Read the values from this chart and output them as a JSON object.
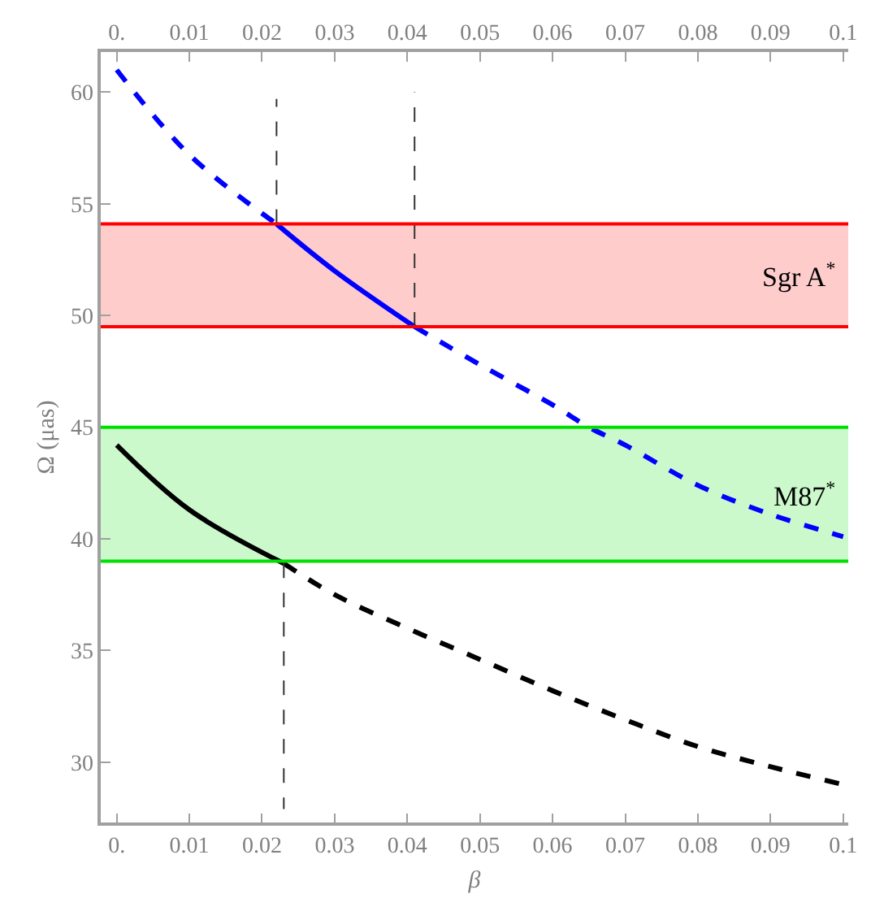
{
  "chart_data": {
    "type": "line",
    "xlabel": "β",
    "ylabel": "Ω (μas)",
    "xlim": [
      -0.0022,
      0.1007
    ],
    "ylim": [
      27.3,
      61.8
    ],
    "xticks": [
      {
        "value": 0,
        "label": "0."
      },
      0.01,
      0.02,
      0.03,
      0.04,
      0.05,
      0.06,
      0.07,
      0.08,
      0.09,
      0.1
    ],
    "x2lim": [
      -0.0022,
      0.1007
    ],
    "x2ticks": [
      {
        "value": 0,
        "label": "0."
      },
      0.01,
      0.02,
      0.03,
      0.04,
      0.05,
      0.06,
      0.07,
      0.08,
      0.09,
      0.1
    ],
    "yticks": [
      30,
      35,
      40,
      45,
      50,
      55,
      60
    ],
    "grid": false,
    "marker": "none",
    "ref_lines": [
      {
        "axis": "y",
        "value": 49.5,
        "color": "#ff0000"
      },
      {
        "axis": "y",
        "value": 54.1,
        "color": "#ff0000"
      },
      {
        "axis": "y",
        "value": 39.0,
        "color": "#00e000"
      },
      {
        "axis": "y",
        "value": 45.0,
        "color": "#00e000"
      }
    ],
    "bands": [
      {
        "axis": "y",
        "from": 49.5,
        "to": 54.1,
        "label": "Sgr A$^{*}$",
        "color": "#ff0000"
      },
      {
        "axis": "y",
        "from": 39.0,
        "to": 45.0,
        "label": "M87$^{*}$",
        "color": "#00e000"
      }
    ],
    "series": [
      {
        "color": "#0000ff",
        "line_style": "dashed",
        "x": [
          0,
          0.01,
          0.022
        ],
        "values": [
          61.0,
          57.2,
          54.1
        ]
      },
      {
        "color": "#0000ff",
        "line_style": "solid",
        "x": [
          0.022,
          0.03,
          0.041
        ],
        "values": [
          54.1,
          52.0,
          49.5
        ]
      },
      {
        "color": "#0000ff",
        "line_style": "dashed",
        "x": [
          0.041,
          0.05,
          0.06,
          0.065,
          0.07,
          0.08,
          0.09,
          0.1
        ],
        "values": [
          49.5,
          47.8,
          46.0,
          45.0,
          44.2,
          42.4,
          41.1,
          40.1
        ]
      },
      {
        "color": "#000000",
        "line_style": "solid",
        "x": [
          0,
          0.01,
          0.023
        ],
        "values": [
          44.2,
          41.3,
          38.9
        ]
      },
      {
        "color": "#000000",
        "line_style": "dashed",
        "x": [
          0.023,
          0.03,
          0.04,
          0.05,
          0.06,
          0.07,
          0.08,
          0.09,
          0.1
        ],
        "values": [
          38.9,
          37.5,
          36.0,
          34.6,
          33.2,
          31.9,
          30.7,
          29.8,
          29.0
        ]
      },
      {
        "color": "#333333",
        "line_style": "dashed",
        "x": [
          0.022,
          0.022
        ],
        "values": [
          54.1,
          59.7
        ]
      },
      {
        "color": "#333333",
        "line_style": "dashed",
        "x": [
          0.041,
          0.041
        ],
        "values": [
          49.5,
          60.0
        ]
      },
      {
        "color": "#333333",
        "line_style": "dashed",
        "x": [
          0.023,
          0.023
        ],
        "values": [
          38.9,
          27.9
        ]
      }
    ]
  }
}
